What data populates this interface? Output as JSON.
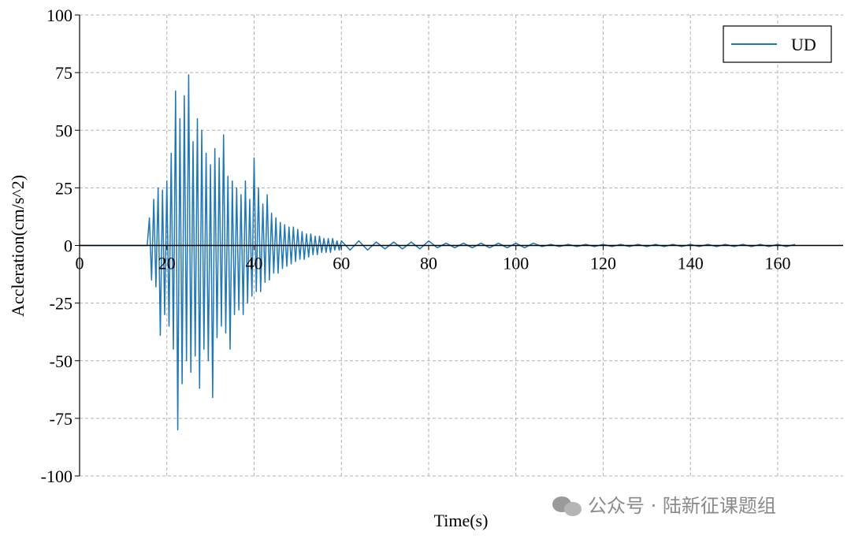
{
  "chart_data": {
    "type": "line",
    "xlabel": "Time(s)",
    "ylabel": "Accleration(cm/s^2)",
    "x": [
      0,
      15.5,
      16,
      16.5,
      17,
      17.5,
      18,
      18.5,
      19,
      19.5,
      20,
      20.5,
      21,
      21.5,
      22,
      22.5,
      23,
      23.5,
      24,
      24.5,
      25,
      25.5,
      26,
      26.5,
      27,
      27.5,
      28,
      28.5,
      29,
      29.5,
      30,
      30.5,
      31,
      31.5,
      32,
      32.5,
      33,
      33.5,
      34,
      34.5,
      35,
      35.5,
      36,
      36.5,
      37,
      37.5,
      38,
      38.5,
      39,
      39.5,
      40,
      40.5,
      41,
      41.5,
      42,
      42.5,
      43,
      43.5,
      44,
      44.5,
      45,
      45.5,
      46,
      46.5,
      47,
      47.5,
      48,
      48.5,
      49,
      49.5,
      50,
      50.5,
      51,
      51.5,
      52,
      52.5,
      53,
      53.5,
      54,
      54.5,
      55,
      55.5,
      56,
      56.5,
      57,
      57.5,
      58,
      58.5,
      59,
      59.5,
      60,
      62,
      64,
      66,
      68,
      70,
      72,
      74,
      76,
      78,
      80,
      82,
      84,
      86,
      88,
      90,
      92,
      94,
      96,
      98,
      100,
      102,
      104,
      106,
      108,
      110,
      112,
      114,
      116,
      118,
      120,
      122,
      124,
      126,
      128,
      130,
      132,
      134,
      136,
      138,
      140,
      142,
      144,
      146,
      148,
      150,
      152,
      154,
      156,
      158,
      160,
      162,
      164
    ],
    "series": [
      {
        "name": "UD",
        "color": "#1f77b4",
        "values": [
          0,
          0,
          12,
          -15,
          20,
          -18,
          25,
          -39,
          24,
          -30,
          28,
          -35,
          40,
          -45,
          67,
          -80,
          55,
          -60,
          65,
          -50,
          74,
          -55,
          45,
          -48,
          55,
          -62,
          50,
          -45,
          40,
          -50,
          35,
          -66,
          42,
          -40,
          38,
          -35,
          48,
          -38,
          30,
          -45,
          28,
          -30,
          25,
          -28,
          22,
          -30,
          28,
          -25,
          20,
          -22,
          38,
          -20,
          25,
          -20,
          18,
          -16,
          22,
          -15,
          14,
          -12,
          12,
          -12,
          10,
          -10,
          9,
          -9,
          8,
          -8,
          8,
          -7,
          7,
          -6,
          6,
          -6,
          5,
          -5,
          5,
          -4,
          4,
          -4,
          4,
          -3,
          3,
          -3,
          3,
          -3,
          3,
          -2,
          2,
          -2,
          2,
          -2,
          2,
          -2,
          1.5,
          -1.5,
          1.5,
          -1.5,
          1.5,
          -1.5,
          2,
          -1,
          1,
          -1,
          1,
          -1,
          1,
          -1,
          1,
          -1,
          1,
          -1,
          1,
          -0.5,
          0.5,
          -0.5,
          0.5,
          -0.5,
          0.5,
          -0.5,
          0.5,
          -0.5,
          0.5,
          -0.5,
          0.5,
          -0.5,
          0.5,
          -0.5,
          0.5,
          -0.5,
          0.5,
          -0.5,
          0.5,
          -0.5,
          0.5,
          -0.5,
          0.5,
          -0.5,
          0.5,
          -0.5,
          0.5,
          -0.5,
          0.5
        ]
      }
    ],
    "xlim": [
      0,
      175
    ],
    "xticks": [
      0,
      20,
      40,
      60,
      80,
      100,
      120,
      140,
      160
    ],
    "ylim": [
      -100,
      100
    ],
    "yticks": [
      -100,
      -75,
      -50,
      -25,
      0,
      25,
      50,
      75,
      100
    ],
    "grid": true,
    "legend": "upper right"
  },
  "watermark": "公众号 · 陆新征课题组"
}
